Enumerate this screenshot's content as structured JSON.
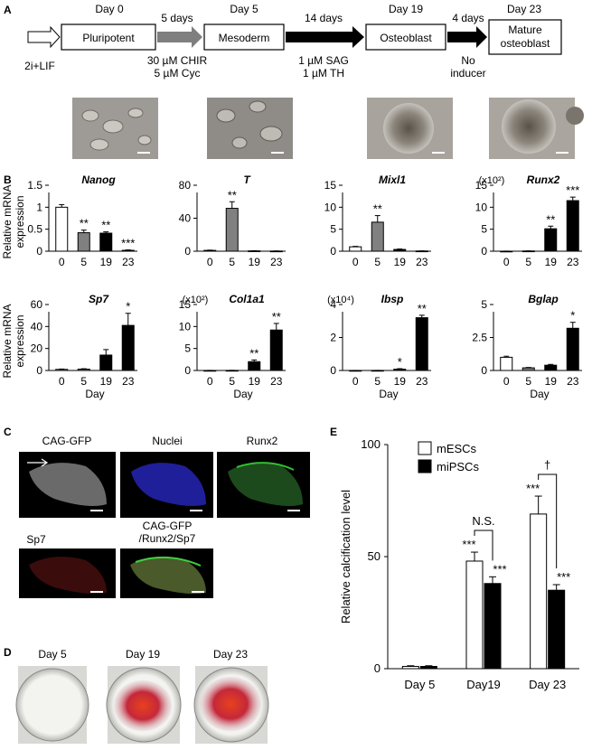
{
  "panels": {
    "A": "A",
    "B": "B",
    "C": "C",
    "D": "D",
    "E": "E"
  },
  "panel_a": {
    "start": "2i+LIF",
    "days": [
      "Day 0",
      "Day 5",
      "Day 19",
      "Day 23"
    ],
    "stages": [
      "Pluripotent",
      "Mesoderm",
      "Osteoblast",
      "Mature\nosteoblast"
    ],
    "intervals": [
      "5 days",
      "14 days",
      "4 days"
    ],
    "conditions": [
      "30 µM CHIR\n5 µM Cyc",
      "1 µM SAG\n1 µM TH",
      "No\ninducer"
    ]
  },
  "panel_b": {
    "ylabel": "Relative mRNA\nexpression",
    "xlabel": "Day",
    "colors": {
      "day0": "#ffffff",
      "day5": "#808080",
      "day19": "#000000",
      "day23": "#000000"
    }
  },
  "chart_data": [
    {
      "type": "bar",
      "title": "Nanog",
      "categories": [
        "0",
        "5",
        "19",
        "23"
      ],
      "values": [
        1.0,
        0.42,
        0.41,
        0.02
      ],
      "errors": [
        0.06,
        0.06,
        0.03,
        0.01
      ],
      "significance": [
        "",
        "**",
        "**",
        "***"
      ],
      "ylim": [
        0,
        1.5
      ],
      "yticks": [
        "0",
        "0.5",
        "1",
        "1.5"
      ],
      "multiplier": "",
      "xlabel": "",
      "ylabel": "Relative mRNA\nexpression"
    },
    {
      "type": "bar",
      "title": "T",
      "categories": [
        "0",
        "5",
        "19",
        "23"
      ],
      "values": [
        1,
        52,
        0.4,
        0.2
      ],
      "errors": [
        0.3,
        8,
        0.2,
        0.1
      ],
      "significance": [
        "",
        "**",
        "",
        ""
      ],
      "ylim": [
        0,
        80
      ],
      "yticks": [
        "0",
        "40",
        "80"
      ],
      "multiplier": "",
      "xlabel": "",
      "ylabel": ""
    },
    {
      "type": "bar",
      "title": "Mixl1",
      "categories": [
        "0",
        "5",
        "19",
        "23"
      ],
      "values": [
        1,
        6.6,
        0.4,
        0.05
      ],
      "errors": [
        0.1,
        1.5,
        0.1,
        0.02
      ],
      "significance": [
        "",
        "**",
        "",
        ""
      ],
      "ylim": [
        0,
        15
      ],
      "yticks": [
        "0",
        "5",
        "10",
        "15"
      ],
      "multiplier": "",
      "xlabel": "",
      "ylabel": ""
    },
    {
      "type": "bar",
      "title": "Runx2",
      "categories": [
        "0",
        "5",
        "19",
        "23"
      ],
      "values": [
        0.01,
        0.05,
        5.1,
        11.5
      ],
      "errors": [
        0.01,
        0.02,
        0.6,
        0.8
      ],
      "significance": [
        "",
        "",
        "**",
        "***"
      ],
      "ylim": [
        0,
        15
      ],
      "yticks": [
        "0",
        "5",
        "10",
        "15"
      ],
      "multiplier": "(x10²)",
      "xlabel": "",
      "ylabel": ""
    },
    {
      "type": "bar",
      "title": "Sp7",
      "categories": [
        "0",
        "5",
        "19",
        "23"
      ],
      "values": [
        1,
        1.2,
        14,
        41
      ],
      "errors": [
        0.3,
        0.4,
        5,
        11
      ],
      "significance": [
        "",
        "",
        "",
        "*"
      ],
      "ylim": [
        0,
        60
      ],
      "yticks": [
        "0",
        "20",
        "40",
        "60"
      ],
      "multiplier": "",
      "xlabel": "Day",
      "ylabel": "Relative mRNA\nexpression"
    },
    {
      "type": "bar",
      "title": "Col1a1",
      "categories": [
        "0",
        "5",
        "19",
        "23"
      ],
      "values": [
        0.01,
        0.02,
        2.0,
        9.2
      ],
      "errors": [
        0.01,
        0.01,
        0.4,
        1.5
      ],
      "significance": [
        "",
        "",
        "**",
        "**"
      ],
      "ylim": [
        0,
        15
      ],
      "yticks": [
        "0",
        "5",
        "10",
        "15"
      ],
      "multiplier": "(x10²)",
      "xlabel": "Day",
      "ylabel": ""
    },
    {
      "type": "bar",
      "title": "Ibsp",
      "categories": [
        "0",
        "5",
        "19",
        "23"
      ],
      "values": [
        0.002,
        0.004,
        0.08,
        3.2
      ],
      "errors": [
        0.001,
        0.002,
        0.03,
        0.15
      ],
      "significance": [
        "",
        "",
        "*",
        "**"
      ],
      "ylim": [
        0,
        4
      ],
      "yticks": [
        "0",
        "2",
        "4"
      ],
      "multiplier": "(x10⁴)",
      "xlabel": "Day",
      "ylabel": ""
    },
    {
      "type": "bar",
      "title": "Bglap",
      "categories": [
        "0",
        "5",
        "19",
        "23"
      ],
      "values": [
        1.0,
        0.2,
        0.4,
        3.2
      ],
      "errors": [
        0.08,
        0.03,
        0.06,
        0.45
      ],
      "significance": [
        "",
        "",
        "",
        "*"
      ],
      "ylim": [
        0,
        5
      ],
      "yticks": [
        "0",
        "2.5",
        "5"
      ],
      "multiplier": "",
      "xlabel": "Day",
      "ylabel": ""
    },
    {
      "type": "bar",
      "title": "",
      "categories": [
        "Day 5",
        "Day19",
        "Day 23"
      ],
      "series": [
        {
          "name": "mESCs",
          "values": [
            1,
            48,
            69
          ],
          "errors": [
            0.3,
            4,
            8
          ]
        },
        {
          "name": "miPSCs",
          "values": [
            1,
            38,
            35
          ],
          "errors": [
            0.3,
            3,
            2.5
          ]
        }
      ],
      "significance": [
        [
          "",
          ""
        ],
        [
          "***",
          "***"
        ],
        [
          "***",
          "***"
        ]
      ],
      "comparisons": [
        "",
        "N.S.",
        "†"
      ],
      "ylim": [
        0,
        100
      ],
      "yticks": [
        "0",
        "50",
        "100"
      ],
      "xlabel": "",
      "ylabel": "Relative calcification level",
      "legend": "top-left",
      "colors": [
        "#ffffff",
        "#000000"
      ]
    }
  ],
  "panel_c": {
    "labels": [
      "CAG-GFP",
      "Nuclei",
      "Runx2",
      "Sp7",
      "CAG-GFP\n/Runx2/Sp7"
    ]
  },
  "panel_d": {
    "labels": [
      "Day 5",
      "Day 19",
      "Day 23"
    ]
  }
}
